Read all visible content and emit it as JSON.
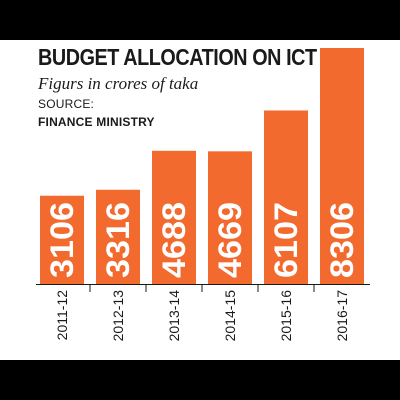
{
  "chart_data": {
    "type": "bar",
    "title": "BUDGET ALLOCATION ON ICT",
    "subtitle": "Figurs in crores of taka",
    "source_label": "SOURCE:",
    "source": "FINANCE MINISTRY",
    "categories": [
      "2011-12",
      "2012-13",
      "2013-14",
      "2014-15",
      "2015-16",
      "2016-17"
    ],
    "values": [
      3106,
      3316,
      4688,
      4669,
      6107,
      8306
    ],
    "bar_color": "#f26a2e",
    "ylim": [
      0,
      8306
    ],
    "grid": false,
    "legend": "none"
  }
}
